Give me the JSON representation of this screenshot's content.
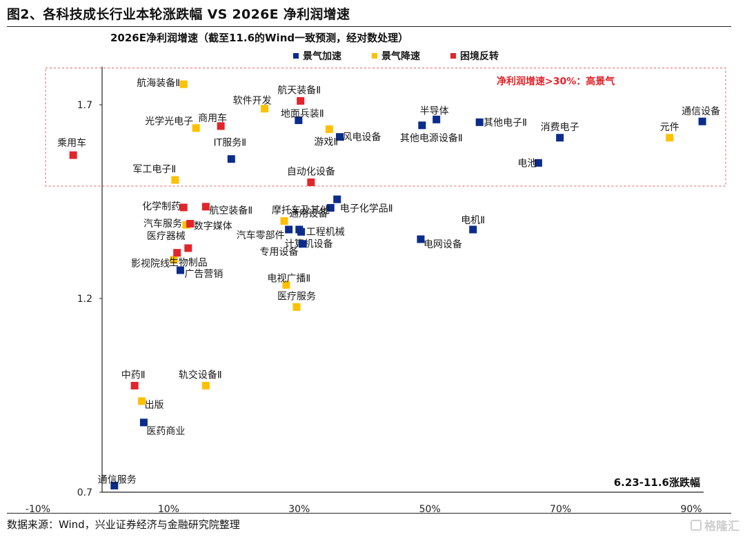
{
  "figure_title": "图2、各科技成长行业本轮涨跌幅  VS 2026E 净利润增速",
  "source_note": "数据来源：Wind，兴业证券经济与金融研究院整理",
  "watermark": "格隆汇",
  "colors": {
    "boom_accelerating": "#0b2c8a",
    "boom_decelerating": "#ffc000",
    "reversal": "#e1252b",
    "highlight_box": "#e06060",
    "highlight_text": "#e1252b"
  },
  "chart_data": {
    "type": "scatter",
    "title": "2026E净利润增速（截至11.6的Wind一致预测，经对数处理）",
    "xlabel": "6.23-11.6涨跌幅",
    "ylabel": "",
    "xlim": [
      -10,
      90
    ],
    "ylim": [
      0.7,
      1.7
    ],
    "x_ticks": [
      {
        "value": -10,
        "label": "-10%"
      },
      {
        "value": 10,
        "label": "10%"
      },
      {
        "value": 30,
        "label": "30%"
      },
      {
        "value": 50,
        "label": "50%"
      },
      {
        "value": 70,
        "label": "70%"
      },
      {
        "value": 90,
        "label": "90%"
      }
    ],
    "y_ticks": [
      {
        "value": 0.7,
        "label": "0.7"
      },
      {
        "value": 1.2,
        "label": "1.2"
      },
      {
        "value": 1.7,
        "label": "1.7"
      }
    ],
    "highlight_region": {
      "label": "净利润增速>30%：高景气",
      "y_from": 1.49,
      "y_to": 1.795
    },
    "legend": [
      {
        "key": "boom_accelerating",
        "label": "景气加速"
      },
      {
        "key": "boom_decelerating",
        "label": "景气降速"
      },
      {
        "key": "reversal",
        "label": "困境反转"
      }
    ],
    "series": [
      {
        "name": "景气加速",
        "color_key": "boom_accelerating",
        "points": [
          {
            "label": "通信设备",
            "x": 91.7,
            "y": 1.657
          },
          {
            "label": "半导体",
            "x": 51.0,
            "y": 1.662
          },
          {
            "label": "其他电子Ⅱ",
            "x": 57.6,
            "y": 1.655
          },
          {
            "label": "其他电源设备Ⅱ",
            "x": 48.8,
            "y": 1.647
          },
          {
            "label": "消费电子",
            "x": 69.9,
            "y": 1.615
          },
          {
            "label": "电池",
            "x": 66.6,
            "y": 1.55
          },
          {
            "label": "地面兵装Ⅱ",
            "x": 29.9,
            "y": 1.66
          },
          {
            "label": "风电设备",
            "x": 36.2,
            "y": 1.617
          },
          {
            "label": "IT服务Ⅱ",
            "x": 19.6,
            "y": 1.56
          },
          {
            "label": "电子化学品Ⅱ",
            "x": 35.8,
            "y": 1.456
          },
          {
            "label": "通用设备",
            "x": 34.8,
            "y": 1.434
          },
          {
            "label": "电机Ⅱ",
            "x": 56.6,
            "y": 1.378
          },
          {
            "label": "电网设备",
            "x": 48.6,
            "y": 1.353
          },
          {
            "label": "汽车零部件",
            "x": 28.4,
            "y": 1.378
          },
          {
            "label": "工程机械",
            "x": 30.0,
            "y": 1.378
          },
          {
            "label": "计算机设备",
            "x": 30.3,
            "y": 1.372
          },
          {
            "label": "专用设备",
            "x": 30.5,
            "y": 1.341
          },
          {
            "label": "广告营销",
            "x": 11.8,
            "y": 1.273
          },
          {
            "label": "医药商业",
            "x": 6.2,
            "y": 0.88
          },
          {
            "label": "通信服务",
            "x": 1.7,
            "y": 0.717
          }
        ]
      },
      {
        "name": "景气降速",
        "color_key": "boom_decelerating",
        "points": [
          {
            "label": "航海装备Ⅱ",
            "x": 12.3,
            "y": 1.753
          },
          {
            "label": "软件开发",
            "x": 24.7,
            "y": 1.69
          },
          {
            "label": "光学光电子",
            "x": 14.2,
            "y": 1.64
          },
          {
            "label": "游戏Ⅱ",
            "x": 34.6,
            "y": 1.637
          },
          {
            "label": "元件",
            "x": 86.7,
            "y": 1.615
          },
          {
            "label": "军工电子Ⅱ",
            "x": 11.0,
            "y": 1.506
          },
          {
            "label": "汽车服务",
            "x": 12.7,
            "y": 1.39
          },
          {
            "label": "摩托车及其他",
            "x": 27.7,
            "y": 1.4
          },
          {
            "label": "影视院线",
            "x": 10.8,
            "y": 1.3
          },
          {
            "label": "电视广播Ⅱ",
            "x": 28.0,
            "y": 1.235
          },
          {
            "label": "医疗服务",
            "x": 29.6,
            "y": 1.178
          },
          {
            "label": "轨交设备Ⅱ",
            "x": 15.7,
            "y": 0.975
          },
          {
            "label": "出版",
            "x": 5.9,
            "y": 0.935
          }
        ]
      },
      {
        "name": "困境反转",
        "color_key": "reversal",
        "points": [
          {
            "label": "航天装备Ⅱ",
            "x": 30.2,
            "y": 1.71
          },
          {
            "label": "商用车",
            "x": 18.0,
            "y": 1.645
          },
          {
            "label": "乘用车",
            "x": -4.6,
            "y": 1.57
          },
          {
            "label": "自动化设备",
            "x": 31.8,
            "y": 1.5
          },
          {
            "label": "化学制药",
            "x": 12.3,
            "y": 1.435
          },
          {
            "label": "航空装备Ⅱ",
            "x": 15.7,
            "y": 1.437
          },
          {
            "label": "数字媒体",
            "x": 13.3,
            "y": 1.393
          },
          {
            "label": "医疗器械",
            "x": 13.0,
            "y": 1.33
          },
          {
            "label": "生物制品",
            "x": 11.3,
            "y": 1.318
          },
          {
            "label": "中药Ⅱ",
            "x": 4.8,
            "y": 0.975
          }
        ]
      }
    ]
  }
}
